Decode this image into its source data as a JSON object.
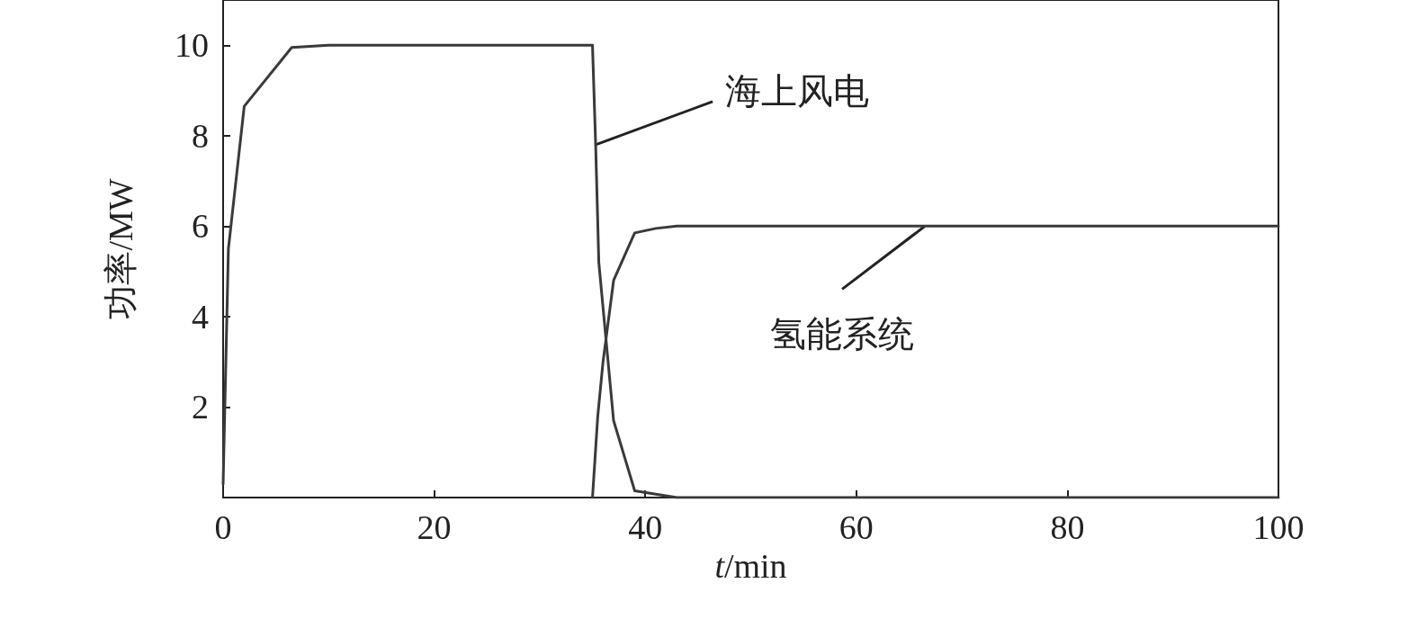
{
  "chart_data": {
    "type": "line",
    "xlabel": "t/min",
    "ylabel": "功率/MW",
    "xlim": [
      0,
      100
    ],
    "xticks": [
      0,
      20,
      40,
      60,
      80,
      100
    ],
    "ylim": [
      0,
      11
    ],
    "yticks": [
      {
        "value": 0,
        "label": null
      },
      2,
      4,
      6,
      8,
      10
    ],
    "grid": false,
    "marker": "none",
    "line_style": "solid",
    "series": [
      {
        "color": "#3a3a3a",
        "x": [
          0,
          0.5,
          2,
          6.5,
          10,
          35,
          35.3,
          35.6,
          37,
          39,
          43,
          100
        ],
        "values": [
          0.3,
          5.5,
          8.65,
          9.95,
          10,
          10,
          7.8,
          5.2,
          1.7,
          0.15,
          0,
          0
        ]
      },
      {
        "color": "#3a3a3a",
        "x": [
          35,
          35.5,
          36,
          37,
          39,
          41,
          43,
          100
        ],
        "values": [
          0,
          1.8,
          3,
          4.8,
          5.85,
          5.95,
          6,
          6
        ]
      }
    ],
    "annotations": [
      {
        "text": "海上风电",
        "x": 35.3,
        "y": 7.8
      },
      {
        "text": "氢能系统",
        "x": 66.5,
        "y": 6
      }
    ]
  }
}
